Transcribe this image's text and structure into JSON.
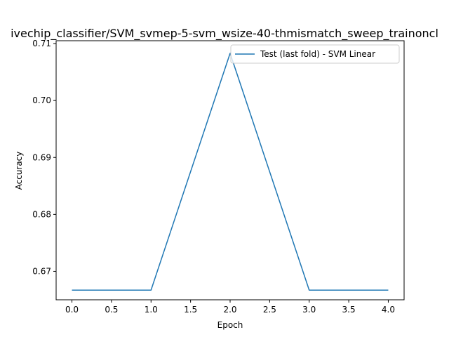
{
  "chart_data": {
    "type": "line",
    "title": "ivechip_classifier/SVM_svmep-5-svm_wsize-40-thmismatch_sweep_trainoncl",
    "xlabel": "Epoch",
    "ylabel": "Accuracy",
    "xlim": [
      -0.2,
      4.2
    ],
    "ylim": [
      0.665,
      0.7105
    ],
    "x_ticks": [
      0.0,
      0.5,
      1.0,
      1.5,
      2.0,
      2.5,
      3.0,
      3.5,
      4.0
    ],
    "x_tick_labels": [
      "0.0",
      "0.5",
      "1.0",
      "1.5",
      "2.0",
      "2.5",
      "3.0",
      "3.5",
      "4.0"
    ],
    "y_ticks": [
      0.67,
      0.68,
      0.69,
      0.7,
      0.71
    ],
    "y_tick_labels": [
      "0.67",
      "0.68",
      "0.69",
      "0.70",
      "0.71"
    ],
    "grid": false,
    "legend_position": "top-right",
    "series": [
      {
        "name": "Test (last fold) - SVM Linear",
        "color": "#1f77b4",
        "x": [
          0,
          1,
          2,
          3,
          4
        ],
        "y": [
          0.6667,
          0.6667,
          0.7083,
          0.6667,
          0.6667
        ]
      }
    ]
  }
}
